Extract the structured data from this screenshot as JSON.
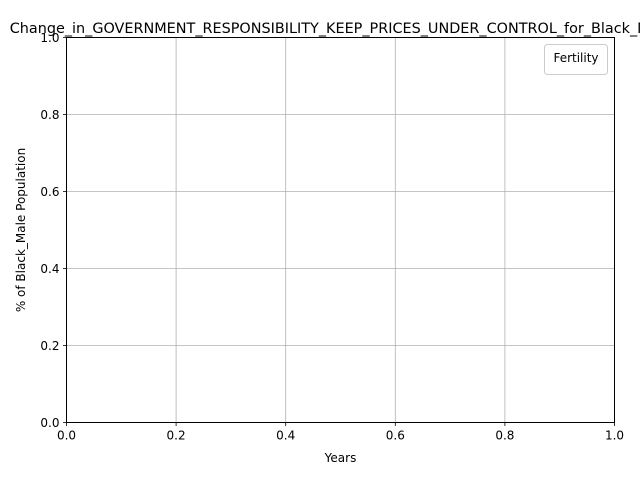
{
  "chart_data": {
    "type": "line",
    "title": "Change_in_GOVERNMENT_RESPONSIBILITY_KEEP_PRICES_UNDER_CONTROL_for_Black_Male",
    "xlabel": "Years",
    "ylabel": "% of Black_Male Population",
    "xlim": [
      0.0,
      1.0
    ],
    "ylim": [
      0.0,
      1.0
    ],
    "x_ticks": [
      "0.0",
      "0.2",
      "0.4",
      "0.6",
      "0.8",
      "1.0"
    ],
    "y_ticks": [
      "0.0",
      "0.2",
      "0.4",
      "0.6",
      "0.8",
      "1.0"
    ],
    "grid": true,
    "legend": {
      "title": "Fertility",
      "placement": "top-right",
      "entries": []
    },
    "series": []
  }
}
